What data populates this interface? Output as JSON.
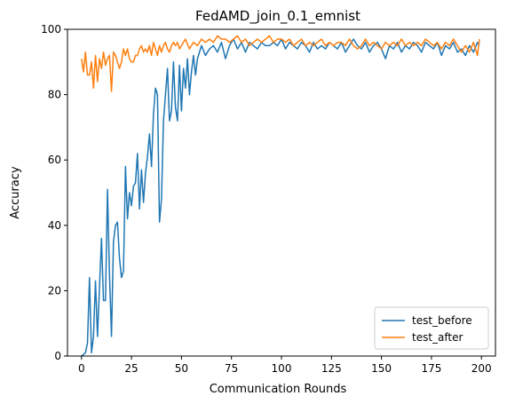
{
  "chart_data": {
    "type": "line",
    "title": "FedAMD_join_0.1_emnist",
    "xlabel": "Communication Rounds",
    "ylabel": "Accuracy",
    "xlim": [
      -7,
      207
    ],
    "ylim": [
      0,
      100
    ],
    "xticks": [
      0,
      25,
      50,
      75,
      100,
      125,
      150,
      175,
      200
    ],
    "yticks": [
      0,
      20,
      40,
      60,
      80,
      100
    ],
    "legend_position": "lower right",
    "series": [
      {
        "name": "test_before",
        "color": "#1f77b4",
        "x": [
          0,
          1,
          2,
          3,
          4,
          5,
          6,
          7,
          8,
          9,
          10,
          11,
          12,
          13,
          14,
          15,
          16,
          17,
          18,
          19,
          20,
          21,
          22,
          23,
          24,
          25,
          26,
          27,
          28,
          29,
          30,
          31,
          32,
          33,
          34,
          35,
          36,
          37,
          38,
          39,
          40,
          41,
          42,
          43,
          44,
          45,
          46,
          47,
          48,
          49,
          50,
          51,
          52,
          53,
          54,
          55,
          56,
          57,
          58,
          59,
          60,
          62,
          64,
          66,
          68,
          70,
          72,
          74,
          76,
          78,
          80,
          82,
          84,
          86,
          88,
          90,
          92,
          94,
          96,
          98,
          100,
          102,
          104,
          106,
          108,
          110,
          112,
          114,
          116,
          118,
          120,
          122,
          124,
          126,
          128,
          130,
          132,
          134,
          136,
          138,
          140,
          142,
          144,
          146,
          148,
          150,
          152,
          154,
          156,
          158,
          160,
          162,
          164,
          166,
          168,
          170,
          172,
          174,
          176,
          178,
          180,
          182,
          184,
          186,
          188,
          190,
          192,
          194,
          196,
          198,
          199
        ],
        "y": [
          0,
          0.5,
          1,
          4,
          24,
          1,
          6,
          23,
          6,
          21,
          36,
          17,
          17,
          51,
          25,
          6,
          35,
          40,
          41,
          30,
          24,
          26,
          58,
          42,
          50,
          46,
          52,
          53,
          62,
          45,
          57,
          47,
          56,
          61,
          68,
          58,
          74,
          82,
          80,
          41,
          48,
          72,
          80,
          88,
          72,
          75,
          90,
          76,
          72,
          89,
          75,
          88,
          82,
          91,
          80,
          87,
          92,
          86,
          91,
          93,
          95,
          92,
          94,
          95,
          93,
          96,
          91,
          95,
          97,
          94,
          96,
          93,
          96,
          95,
          94,
          96,
          95,
          95,
          96,
          95,
          97,
          94,
          96,
          95,
          94,
          96,
          95,
          93,
          96,
          94,
          95,
          94,
          96,
          95,
          94,
          96,
          93,
          95,
          97,
          95,
          94,
          96,
          93,
          95,
          96,
          94,
          91,
          95,
          94,
          96,
          93,
          95,
          94,
          96,
          95,
          93,
          96,
          95,
          94,
          96,
          92,
          95,
          94,
          96,
          93,
          94,
          92,
          95,
          93,
          96,
          95
        ]
      },
      {
        "name": "test_after",
        "color": "#ff7f0e",
        "x": [
          0,
          1,
          2,
          3,
          4,
          5,
          6,
          7,
          8,
          9,
          10,
          11,
          12,
          13,
          14,
          15,
          16,
          17,
          18,
          19,
          20,
          21,
          22,
          23,
          24,
          25,
          26,
          27,
          28,
          29,
          30,
          31,
          32,
          33,
          34,
          35,
          36,
          37,
          38,
          39,
          40,
          41,
          42,
          43,
          44,
          45,
          46,
          47,
          48,
          49,
          50,
          52,
          54,
          56,
          58,
          60,
          62,
          64,
          66,
          68,
          70,
          72,
          74,
          76,
          78,
          80,
          82,
          84,
          86,
          88,
          90,
          92,
          94,
          96,
          98,
          100,
          102,
          104,
          106,
          108,
          110,
          112,
          114,
          116,
          118,
          120,
          122,
          124,
          126,
          128,
          130,
          132,
          134,
          136,
          138,
          140,
          142,
          144,
          146,
          148,
          150,
          152,
          154,
          156,
          158,
          160,
          162,
          164,
          166,
          168,
          170,
          172,
          174,
          176,
          178,
          180,
          182,
          184,
          186,
          188,
          190,
          192,
          194,
          196,
          198,
          199
        ],
        "y": [
          91,
          87,
          93,
          86,
          86,
          90,
          82,
          92,
          84,
          91,
          88,
          93,
          89,
          91,
          92,
          81,
          93,
          92,
          90,
          88,
          90,
          94,
          92,
          94,
          91,
          90,
          90,
          92,
          92,
          94,
          95,
          93,
          94,
          93,
          95,
          92,
          96,
          94,
          92,
          95,
          93,
          95,
          96,
          94,
          93,
          95,
          96,
          95,
          96,
          94,
          95,
          97,
          94,
          96,
          95,
          97,
          96,
          97,
          96,
          98,
          97,
          97,
          96,
          97,
          98,
          96,
          97,
          95,
          96,
          97,
          96,
          97,
          98,
          96,
          97,
          97,
          96,
          97,
          95,
          96,
          97,
          95,
          96,
          95,
          96,
          97,
          95,
          96,
          95,
          96,
          96,
          95,
          97,
          95,
          94,
          95,
          97,
          95,
          96,
          95,
          94,
          96,
          95,
          96,
          95,
          97,
          95,
          96,
          95,
          96,
          95,
          97,
          96,
          95,
          96,
          94,
          96,
          95,
          97,
          95,
          93,
          95,
          93,
          96,
          92,
          97
        ]
      }
    ]
  }
}
